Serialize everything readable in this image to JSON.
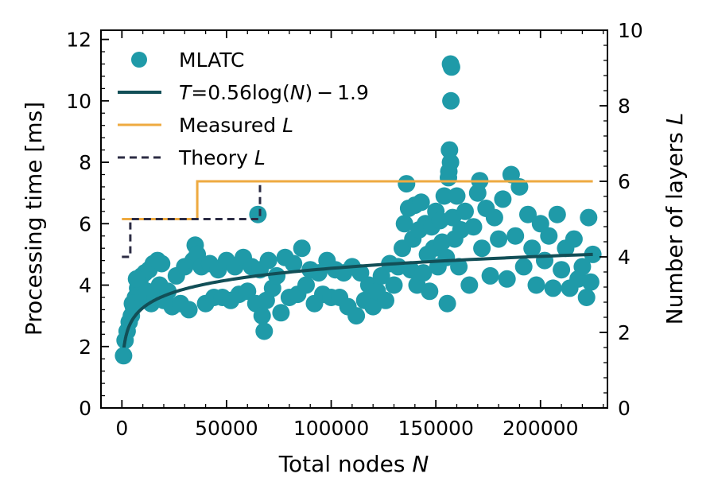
{
  "chart_data": {
    "type": "scatter",
    "xlabel": {
      "pre": "Total nodes ",
      "var": "N"
    },
    "ylabel": "Processing time [ms]",
    "y2label": {
      "pre": "Number of layers ",
      "var": "L"
    },
    "xlim": [
      -10000,
      232000
    ],
    "ylim": [
      0,
      12.3
    ],
    "y2lim": [
      0,
      10
    ],
    "xticks": [
      0,
      50000,
      100000,
      150000,
      200000
    ],
    "xtick_labels": [
      "0",
      "50000",
      "100000",
      "150000",
      "200000"
    ],
    "yticks": [
      0,
      2,
      4,
      6,
      8,
      10,
      12
    ],
    "ytick_labels": [
      "0",
      "2",
      "4",
      "6",
      "8",
      "10",
      "12"
    ],
    "y2ticks": [
      0,
      2,
      4,
      6,
      8,
      10
    ],
    "y2tick_labels": [
      "0",
      "2",
      "4",
      "6",
      "8",
      "10"
    ],
    "grid": false,
    "legend_position": "top-left",
    "series": [
      {
        "name": "MLATC",
        "kind": "scatter",
        "axis": "left",
        "color": "#1f9aa8",
        "points": [
          [
            800,
            1.7
          ],
          [
            1500,
            2.2
          ],
          [
            2500,
            2.5
          ],
          [
            3500,
            2.8
          ],
          [
            4500,
            3.0
          ],
          [
            5500,
            3.3
          ],
          [
            6500,
            3.6
          ],
          [
            7500,
            3.9
          ],
          [
            8500,
            4.1
          ],
          [
            9500,
            4.3
          ],
          [
            11000,
            4.4
          ],
          [
            13000,
            4.5
          ],
          [
            15000,
            4.7
          ],
          [
            17000,
            4.8
          ],
          [
            19000,
            4.7
          ],
          [
            5000,
            3.4
          ],
          [
            7000,
            4.2
          ],
          [
            10000,
            3.6
          ],
          [
            12000,
            3.8
          ],
          [
            14000,
            3.4
          ],
          [
            16000,
            3.6
          ],
          [
            18000,
            4.0
          ],
          [
            20000,
            3.5
          ],
          [
            22000,
            3.8
          ],
          [
            24000,
            3.3
          ],
          [
            26000,
            4.3
          ],
          [
            28000,
            3.4
          ],
          [
            30000,
            4.6
          ],
          [
            32000,
            3.2
          ],
          [
            34000,
            4.8
          ],
          [
            35000,
            5.3
          ],
          [
            36000,
            5.0
          ],
          [
            38000,
            4.6
          ],
          [
            40000,
            3.4
          ],
          [
            42000,
            4.7
          ],
          [
            44000,
            3.6
          ],
          [
            46000,
            4.5
          ],
          [
            48000,
            3.6
          ],
          [
            50000,
            4.8
          ],
          [
            52000,
            3.5
          ],
          [
            54000,
            4.6
          ],
          [
            56000,
            3.7
          ],
          [
            58000,
            4.9
          ],
          [
            60000,
            3.8
          ],
          [
            62000,
            4.6
          ],
          [
            64000,
            3.4
          ],
          [
            65000,
            6.3
          ],
          [
            66000,
            4.5
          ],
          [
            67000,
            3.0
          ],
          [
            68000,
            2.5
          ],
          [
            69000,
            3.5
          ],
          [
            70000,
            4.8
          ],
          [
            72000,
            3.9
          ],
          [
            74000,
            4.3
          ],
          [
            76000,
            3.1
          ],
          [
            78000,
            4.9
          ],
          [
            80000,
            3.6
          ],
          [
            82000,
            4.7
          ],
          [
            84000,
            3.7
          ],
          [
            86000,
            5.2
          ],
          [
            88000,
            4.0
          ],
          [
            90000,
            4.5
          ],
          [
            92000,
            3.4
          ],
          [
            94000,
            4.4
          ],
          [
            96000,
            3.7
          ],
          [
            98000,
            4.8
          ],
          [
            100000,
            3.6
          ],
          [
            102000,
            4.5
          ],
          [
            104000,
            3.6
          ],
          [
            106000,
            4.4
          ],
          [
            108000,
            3.3
          ],
          [
            110000,
            4.6
          ],
          [
            112000,
            3.0
          ],
          [
            114000,
            4.4
          ],
          [
            116000,
            3.5
          ],
          [
            118000,
            4.0
          ],
          [
            120000,
            3.3
          ],
          [
            122000,
            3.8
          ],
          [
            124000,
            4.3
          ],
          [
            126000,
            3.5
          ],
          [
            128000,
            4.7
          ],
          [
            130000,
            4.0
          ],
          [
            132000,
            4.6
          ],
          [
            134000,
            5.2
          ],
          [
            135000,
            6.0
          ],
          [
            136000,
            7.3
          ],
          [
            137000,
            6.5
          ],
          [
            138000,
            4.5
          ],
          [
            139000,
            5.5
          ],
          [
            140000,
            6.6
          ],
          [
            141000,
            4.0
          ],
          [
            142000,
            5.8
          ],
          [
            143000,
            6.7
          ],
          [
            144000,
            4.4
          ],
          [
            145000,
            6.0
          ],
          [
            146000,
            5.0
          ],
          [
            147000,
            3.8
          ],
          [
            148000,
            5.9
          ],
          [
            149000,
            5.2
          ],
          [
            150000,
            6.4
          ],
          [
            151000,
            4.6
          ],
          [
            152000,
            6.1
          ],
          [
            153000,
            5.4
          ],
          [
            154000,
            6.9
          ],
          [
            155000,
            4.9
          ],
          [
            156000,
            7.5
          ],
          [
            156500,
            8.4
          ],
          [
            157000,
            11.2
          ],
          [
            157000,
            8.0
          ],
          [
            157200,
            10.0
          ],
          [
            157500,
            11.1
          ],
          [
            156200,
            7.7
          ],
          [
            155500,
            3.4
          ],
          [
            158000,
            6.2
          ],
          [
            159000,
            5.5
          ],
          [
            160000,
            6.9
          ],
          [
            161000,
            4.6
          ],
          [
            162000,
            5.8
          ],
          [
            164000,
            6.4
          ],
          [
            166000,
            4.0
          ],
          [
            168000,
            5.9
          ],
          [
            170000,
            7.0
          ],
          [
            171000,
            7.4
          ],
          [
            172000,
            5.2
          ],
          [
            174000,
            6.5
          ],
          [
            176000,
            4.3
          ],
          [
            178000,
            6.2
          ],
          [
            180000,
            5.5
          ],
          [
            182000,
            6.8
          ],
          [
            184000,
            4.2
          ],
          [
            186000,
            7.6
          ],
          [
            188000,
            5.6
          ],
          [
            190000,
            7.2
          ],
          [
            192000,
            4.6
          ],
          [
            194000,
            6.3
          ],
          [
            196000,
            5.2
          ],
          [
            198000,
            4.0
          ],
          [
            200000,
            6.0
          ],
          [
            202000,
            4.8
          ],
          [
            204000,
            5.6
          ],
          [
            206000,
            3.9
          ],
          [
            208000,
            6.3
          ],
          [
            210000,
            4.5
          ],
          [
            212000,
            5.2
          ],
          [
            214000,
            3.9
          ],
          [
            216000,
            5.5
          ],
          [
            218000,
            4.2
          ],
          [
            220000,
            4.6
          ],
          [
            222000,
            3.6
          ],
          [
            223000,
            6.2
          ],
          [
            224000,
            4.1
          ],
          [
            225000,
            5.0
          ]
        ]
      },
      {
        "name": {
          "pre": "",
          "var": "T",
          "post": "=0.56log(",
          "var2": "N",
          "post2": ") − 1.9"
        },
        "kind": "fit",
        "axis": "left",
        "color": "#124f57",
        "fit": {
          "a": 0.56,
          "b": -1.9,
          "x_start": 1000,
          "x_end": 225000
        }
      },
      {
        "name": {
          "pre": "Measured ",
          "var": "L"
        },
        "kind": "step",
        "axis": "right",
        "color": "#eeaa40",
        "x": [
          0,
          36000,
          36000,
          225000
        ],
        "y": [
          5,
          5,
          6,
          6
        ]
      },
      {
        "name": {
          "pre": "Theory ",
          "var": "L"
        },
        "kind": "dashed-step",
        "axis": "right",
        "color": "#2c2c44",
        "x": [
          0,
          4000,
          4000,
          66000,
          66000
        ],
        "y": [
          4,
          4,
          5,
          5,
          6
        ]
      }
    ]
  }
}
